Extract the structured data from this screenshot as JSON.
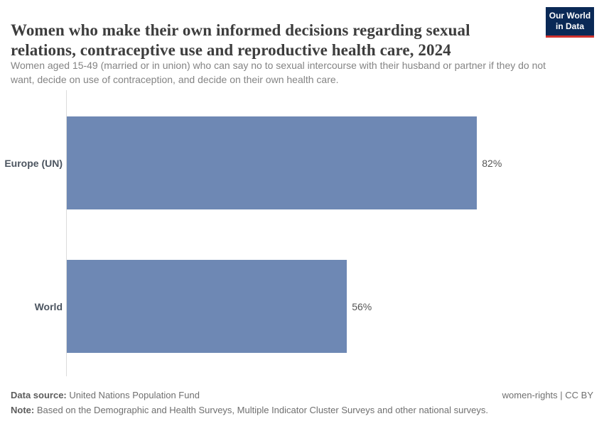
{
  "header": {
    "title_lines": [
      "Women who make their own informed decisions regarding sexual",
      "relations, contraceptive use and reproductive health care, 2024"
    ],
    "subtitle_lines": [
      "Women aged 15-49 (married or in union) who can say no to sexual intercourse with their husband or partner if they do not",
      "want, decide on use of contraception, and decide on their own health care."
    ],
    "logo": {
      "line1": "Our World",
      "line2": "in Data",
      "background_color": "#0a2956",
      "accent_color": "#d0312d"
    }
  },
  "chart_data": {
    "type": "bar",
    "orientation": "horizontal",
    "title": "Women who make their own informed decisions regarding sexual relations, contraceptive use and reproductive health care, 2024",
    "categories": [
      "Europe (UN)",
      "World"
    ],
    "values": [
      82,
      56
    ],
    "value_labels": [
      "82%",
      "56%"
    ],
    "unit": "%",
    "xlim": [
      0,
      100
    ],
    "grid": false,
    "legend": "none",
    "bar_color": "#6e88b4"
  },
  "footer": {
    "source_label": "Data source:",
    "source_value": " United Nations Population Fund",
    "rights": "women-rights | CC BY",
    "note_label": "Note:",
    "note_value": " Based on the Demographic and Health Surveys, Multiple Indicator Cluster Surveys and other national surveys."
  }
}
